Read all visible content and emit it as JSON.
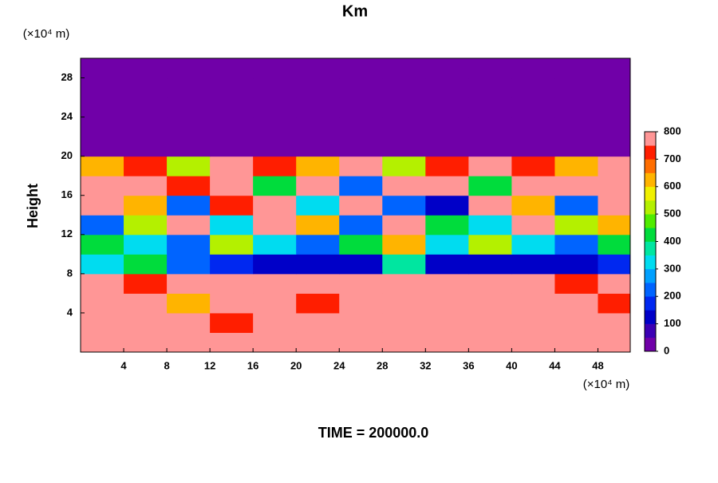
{
  "chart_data": {
    "type": "heatmap",
    "title": "Km",
    "ylabel": "Height",
    "y_unit": "(×10⁴ m)",
    "x_unit": "(×10⁴ m)",
    "footer": "TIME = 200000.0",
    "xlim": [
      0,
      51
    ],
    "ylim": [
      0,
      30
    ],
    "xticks": [
      4,
      8,
      12,
      16,
      20,
      24,
      28,
      32,
      36,
      40,
      44,
      48
    ],
    "yticks": [
      4,
      8,
      12,
      16,
      20,
      24,
      28
    ],
    "x": [
      0,
      4,
      8,
      12,
      16,
      20,
      24,
      28,
      32,
      36,
      40,
      44,
      48
    ],
    "y": [
      0,
      2,
      4,
      6,
      8,
      10,
      12,
      14,
      16,
      18,
      20,
      22,
      24,
      26,
      28
    ],
    "z": [
      [
        800,
        800,
        800,
        800,
        800,
        800,
        800,
        800,
        800,
        800,
        800,
        800,
        800
      ],
      [
        800,
        800,
        800,
        700,
        800,
        800,
        800,
        800,
        800,
        800,
        800,
        800,
        800
      ],
      [
        800,
        800,
        600,
        800,
        800,
        700,
        800,
        800,
        800,
        800,
        800,
        800,
        700
      ],
      [
        800,
        700,
        800,
        800,
        800,
        800,
        800,
        800,
        800,
        800,
        800,
        700,
        800
      ],
      [
        300,
        400,
        200,
        150,
        100,
        100,
        100,
        350,
        100,
        100,
        100,
        100,
        150
      ],
      [
        400,
        300,
        200,
        500,
        300,
        200,
        400,
        600,
        300,
        500,
        300,
        200,
        400
      ],
      [
        200,
        500,
        800,
        300,
        800,
        600,
        200,
        800,
        400,
        300,
        800,
        500,
        600
      ],
      [
        800,
        600,
        200,
        700,
        800,
        300,
        800,
        200,
        100,
        800,
        600,
        200,
        800
      ],
      [
        800,
        800,
        700,
        800,
        400,
        800,
        200,
        800,
        800,
        400,
        800,
        800,
        800
      ],
      [
        600,
        700,
        500,
        800,
        700,
        600,
        800,
        500,
        700,
        800,
        700,
        600,
        800
      ],
      [
        0,
        0,
        0,
        0,
        0,
        0,
        0,
        0,
        0,
        0,
        0,
        0,
        0
      ],
      [
        0,
        0,
        0,
        0,
        0,
        0,
        0,
        0,
        0,
        0,
        0,
        0,
        0
      ],
      [
        0,
        0,
        0,
        0,
        0,
        0,
        0,
        0,
        0,
        0,
        0,
        0,
        0
      ],
      [
        0,
        0,
        0,
        0,
        0,
        0,
        0,
        0,
        0,
        0,
        0,
        0,
        0
      ],
      [
        0,
        0,
        0,
        0,
        0,
        0,
        0,
        0,
        0,
        0,
        0,
        0,
        0
      ]
    ],
    "colorbar": {
      "lim": [
        0,
        800
      ],
      "ticks": [
        0,
        100,
        200,
        300,
        400,
        500,
        600,
        700,
        800
      ],
      "colors": [
        "#7000a8",
        "#3c00b4",
        "#0000c8",
        "#0028f0",
        "#0064ff",
        "#00a0ff",
        "#00dcf0",
        "#00e6a0",
        "#00dc3c",
        "#50ec00",
        "#b4f000",
        "#f0f000",
        "#ffb400",
        "#ff6e00",
        "#ff1e00",
        "#ff9696"
      ]
    }
  }
}
